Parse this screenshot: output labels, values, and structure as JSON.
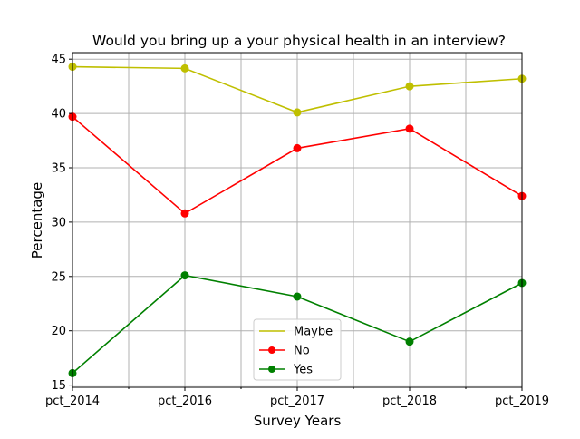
{
  "chart_data": {
    "type": "line",
    "title": "Would you bring up a your physical health in an interview?",
    "xlabel": "Survey Years",
    "ylabel": "Percentage",
    "categories": [
      "pct_2014",
      "pct_2016",
      "pct_2017",
      "pct_2018",
      "pct_2019"
    ],
    "ylim": [
      14.8,
      45.6
    ],
    "yticks": [
      15,
      20,
      25,
      30,
      35,
      40,
      45
    ],
    "grid": true,
    "legend_position": "lower center",
    "series": [
      {
        "name": "Maybe",
        "color": "#bfbf00",
        "marker": "none",
        "values": [
          44.3,
          44.15,
          40.1,
          42.5,
          43.2
        ]
      },
      {
        "name": "No",
        "color": "#ff0000",
        "marker": "circle",
        "values": [
          39.7,
          30.8,
          36.8,
          38.6,
          32.4
        ]
      },
      {
        "name": "Yes",
        "color": "#008000",
        "marker": "circle",
        "values": [
          16.1,
          25.1,
          23.15,
          19.0,
          24.4
        ]
      }
    ]
  }
}
